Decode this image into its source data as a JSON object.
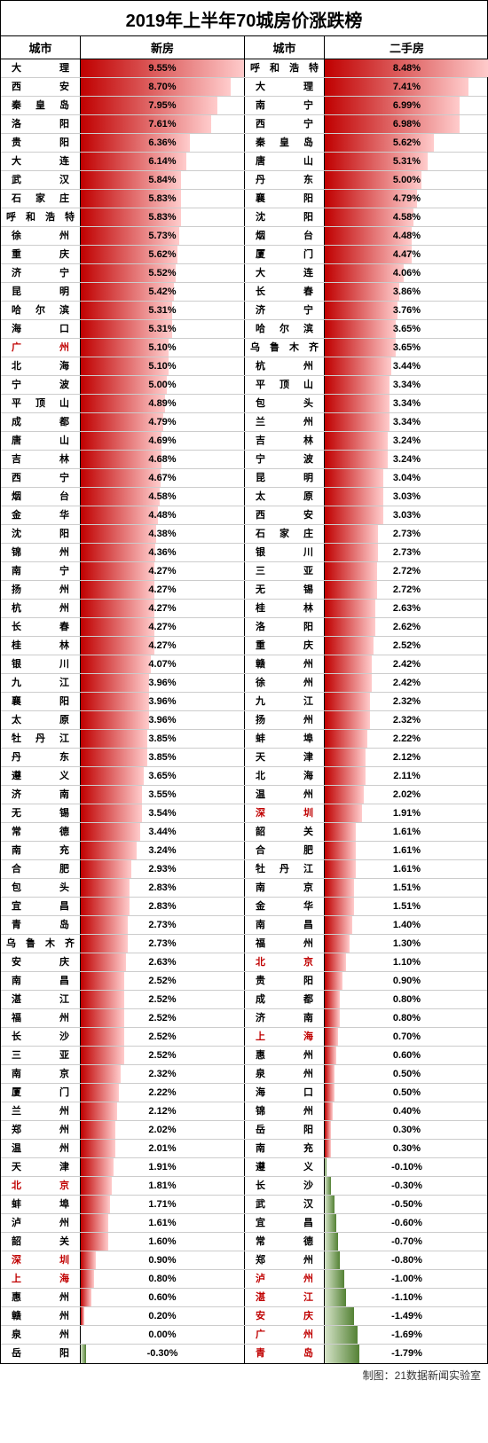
{
  "title": "2019年上半年70城房价涨跌榜",
  "footer": "制图：21数据新闻实验室",
  "headers": {
    "city1": "城市",
    "newHouse": "新房",
    "city2": "城市",
    "secondHand": "二手房"
  },
  "style": {
    "posColorStart": "#c00000",
    "posColorEnd": "#ffcccc",
    "negColorStart": "#548235",
    "negColorEnd": "#d5e3c8",
    "highlightTextColor": "#c00000",
    "borderColor": "#000000",
    "rowBorderColor": "#cccccc",
    "newHouseMax": 9.55,
    "secondHandMax": 8.48,
    "barFullWidthPx": 185,
    "titleFontSize": 20,
    "headerFontSize": 13,
    "cellFontSize": 11,
    "rowHeightPx": 21
  },
  "newHouse": [
    {
      "city": "大　理",
      "value": 9.55,
      "hl": false
    },
    {
      "city": "西　安",
      "value": 8.7,
      "hl": false
    },
    {
      "city": "秦皇岛",
      "value": 7.95,
      "hl": false
    },
    {
      "city": "洛　阳",
      "value": 7.61,
      "hl": false
    },
    {
      "city": "贵　阳",
      "value": 6.36,
      "hl": false
    },
    {
      "city": "大　连",
      "value": 6.14,
      "hl": false
    },
    {
      "city": "武　汉",
      "value": 5.84,
      "hl": false
    },
    {
      "city": "石家庄",
      "value": 5.83,
      "hl": false
    },
    {
      "city": "呼和浩特",
      "value": 5.83,
      "hl": false
    },
    {
      "city": "徐　州",
      "value": 5.73,
      "hl": false
    },
    {
      "city": "重　庆",
      "value": 5.62,
      "hl": false
    },
    {
      "city": "济　宁",
      "value": 5.52,
      "hl": false
    },
    {
      "city": "昆　明",
      "value": 5.42,
      "hl": false
    },
    {
      "city": "哈尔滨",
      "value": 5.31,
      "hl": false
    },
    {
      "city": "海　口",
      "value": 5.31,
      "hl": false
    },
    {
      "city": "广　州",
      "value": 5.1,
      "hl": true
    },
    {
      "city": "北　海",
      "value": 5.1,
      "hl": false
    },
    {
      "city": "宁　波",
      "value": 5.0,
      "hl": false
    },
    {
      "city": "平顶山",
      "value": 4.89,
      "hl": false
    },
    {
      "city": "成　都",
      "value": 4.79,
      "hl": false
    },
    {
      "city": "唐　山",
      "value": 4.69,
      "hl": false
    },
    {
      "city": "吉　林",
      "value": 4.68,
      "hl": false
    },
    {
      "city": "西　宁",
      "value": 4.67,
      "hl": false
    },
    {
      "city": "烟　台",
      "value": 4.58,
      "hl": false
    },
    {
      "city": "金　华",
      "value": 4.48,
      "hl": false
    },
    {
      "city": "沈　阳",
      "value": 4.38,
      "hl": false
    },
    {
      "city": "锦　州",
      "value": 4.36,
      "hl": false
    },
    {
      "city": "南　宁",
      "value": 4.27,
      "hl": false
    },
    {
      "city": "扬　州",
      "value": 4.27,
      "hl": false
    },
    {
      "city": "杭　州",
      "value": 4.27,
      "hl": false
    },
    {
      "city": "长　春",
      "value": 4.27,
      "hl": false
    },
    {
      "city": "桂　林",
      "value": 4.27,
      "hl": false
    },
    {
      "city": "银　川",
      "value": 4.07,
      "hl": false
    },
    {
      "city": "九　江",
      "value": 3.96,
      "hl": false
    },
    {
      "city": "襄　阳",
      "value": 3.96,
      "hl": false
    },
    {
      "city": "太　原",
      "value": 3.96,
      "hl": false
    },
    {
      "city": "牡丹江",
      "value": 3.85,
      "hl": false
    },
    {
      "city": "丹　东",
      "value": 3.85,
      "hl": false
    },
    {
      "city": "遵　义",
      "value": 3.65,
      "hl": false
    },
    {
      "city": "济　南",
      "value": 3.55,
      "hl": false
    },
    {
      "city": "无　锡",
      "value": 3.54,
      "hl": false
    },
    {
      "city": "常　德",
      "value": 3.44,
      "hl": false
    },
    {
      "city": "南　充",
      "value": 3.24,
      "hl": false
    },
    {
      "city": "合　肥",
      "value": 2.93,
      "hl": false
    },
    {
      "city": "包　头",
      "value": 2.83,
      "hl": false
    },
    {
      "city": "宜　昌",
      "value": 2.83,
      "hl": false
    },
    {
      "city": "青　岛",
      "value": 2.73,
      "hl": false
    },
    {
      "city": "乌鲁木齐",
      "value": 2.73,
      "hl": false
    },
    {
      "city": "安　庆",
      "value": 2.63,
      "hl": false
    },
    {
      "city": "南　昌",
      "value": 2.52,
      "hl": false
    },
    {
      "city": "湛　江",
      "value": 2.52,
      "hl": false
    },
    {
      "city": "福　州",
      "value": 2.52,
      "hl": false
    },
    {
      "city": "长　沙",
      "value": 2.52,
      "hl": false
    },
    {
      "city": "三　亚",
      "value": 2.52,
      "hl": false
    },
    {
      "city": "南　京",
      "value": 2.32,
      "hl": false
    },
    {
      "city": "厦　门",
      "value": 2.22,
      "hl": false
    },
    {
      "city": "兰　州",
      "value": 2.12,
      "hl": false
    },
    {
      "city": "郑　州",
      "value": 2.02,
      "hl": false
    },
    {
      "city": "温　州",
      "value": 2.01,
      "hl": false
    },
    {
      "city": "天　津",
      "value": 1.91,
      "hl": false
    },
    {
      "city": "北　京",
      "value": 1.81,
      "hl": true
    },
    {
      "city": "蚌　埠",
      "value": 1.71,
      "hl": false
    },
    {
      "city": "泸　州",
      "value": 1.61,
      "hl": false
    },
    {
      "city": "韶　关",
      "value": 1.6,
      "hl": false
    },
    {
      "city": "深　圳",
      "value": 0.9,
      "hl": true
    },
    {
      "city": "上　海",
      "value": 0.8,
      "hl": true
    },
    {
      "city": "惠　州",
      "value": 0.6,
      "hl": false
    },
    {
      "city": "赣　州",
      "value": 0.2,
      "hl": false
    },
    {
      "city": "泉　州",
      "value": 0.0,
      "hl": false
    },
    {
      "city": "岳　阳",
      "value": -0.3,
      "hl": false
    }
  ],
  "secondHand": [
    {
      "city": "呼和浩特",
      "value": 8.48,
      "hl": false
    },
    {
      "city": "大　理",
      "value": 7.41,
      "hl": false
    },
    {
      "city": "南　宁",
      "value": 6.99,
      "hl": false
    },
    {
      "city": "西　宁",
      "value": 6.98,
      "hl": false
    },
    {
      "city": "秦皇岛",
      "value": 5.62,
      "hl": false
    },
    {
      "city": "唐　山",
      "value": 5.31,
      "hl": false
    },
    {
      "city": "丹　东",
      "value": 5.0,
      "hl": false
    },
    {
      "city": "襄　阳",
      "value": 4.79,
      "hl": false
    },
    {
      "city": "沈　阳",
      "value": 4.58,
      "hl": false
    },
    {
      "city": "烟　台",
      "value": 4.48,
      "hl": false
    },
    {
      "city": "厦　门",
      "value": 4.47,
      "hl": false
    },
    {
      "city": "大　连",
      "value": 4.06,
      "hl": false
    },
    {
      "city": "长　春",
      "value": 3.86,
      "hl": false
    },
    {
      "city": "济　宁",
      "value": 3.76,
      "hl": false
    },
    {
      "city": "哈尔滨",
      "value": 3.65,
      "hl": false
    },
    {
      "city": "乌鲁木齐",
      "value": 3.65,
      "hl": false
    },
    {
      "city": "杭　州",
      "value": 3.44,
      "hl": false
    },
    {
      "city": "平顶山",
      "value": 3.34,
      "hl": false
    },
    {
      "city": "包　头",
      "value": 3.34,
      "hl": false
    },
    {
      "city": "兰　州",
      "value": 3.34,
      "hl": false
    },
    {
      "city": "吉　林",
      "value": 3.24,
      "hl": false
    },
    {
      "city": "宁　波",
      "value": 3.24,
      "hl": false
    },
    {
      "city": "昆　明",
      "value": 3.04,
      "hl": false
    },
    {
      "city": "太　原",
      "value": 3.03,
      "hl": false
    },
    {
      "city": "西　安",
      "value": 3.03,
      "hl": false
    },
    {
      "city": "石家庄",
      "value": 2.73,
      "hl": false
    },
    {
      "city": "银　川",
      "value": 2.73,
      "hl": false
    },
    {
      "city": "三　亚",
      "value": 2.72,
      "hl": false
    },
    {
      "city": "无　锡",
      "value": 2.72,
      "hl": false
    },
    {
      "city": "桂　林",
      "value": 2.63,
      "hl": false
    },
    {
      "city": "洛　阳",
      "value": 2.62,
      "hl": false
    },
    {
      "city": "重　庆",
      "value": 2.52,
      "hl": false
    },
    {
      "city": "赣　州",
      "value": 2.42,
      "hl": false
    },
    {
      "city": "徐　州",
      "value": 2.42,
      "hl": false
    },
    {
      "city": "九　江",
      "value": 2.32,
      "hl": false
    },
    {
      "city": "扬　州",
      "value": 2.32,
      "hl": false
    },
    {
      "city": "蚌　埠",
      "value": 2.22,
      "hl": false
    },
    {
      "city": "天　津",
      "value": 2.12,
      "hl": false
    },
    {
      "city": "北　海",
      "value": 2.11,
      "hl": false
    },
    {
      "city": "温　州",
      "value": 2.02,
      "hl": false
    },
    {
      "city": "深　圳",
      "value": 1.91,
      "hl": true
    },
    {
      "city": "韶　关",
      "value": 1.61,
      "hl": false
    },
    {
      "city": "合　肥",
      "value": 1.61,
      "hl": false
    },
    {
      "city": "牡丹江",
      "value": 1.61,
      "hl": false
    },
    {
      "city": "南　京",
      "value": 1.51,
      "hl": false
    },
    {
      "city": "金　华",
      "value": 1.51,
      "hl": false
    },
    {
      "city": "南　昌",
      "value": 1.4,
      "hl": false
    },
    {
      "city": "福　州",
      "value": 1.3,
      "hl": false
    },
    {
      "city": "北　京",
      "value": 1.1,
      "hl": true
    },
    {
      "city": "贵　阳",
      "value": 0.9,
      "hl": false
    },
    {
      "city": "成　都",
      "value": 0.8,
      "hl": false
    },
    {
      "city": "济　南",
      "value": 0.8,
      "hl": false
    },
    {
      "city": "上　海",
      "value": 0.7,
      "hl": true
    },
    {
      "city": "惠　州",
      "value": 0.6,
      "hl": false
    },
    {
      "city": "泉　州",
      "value": 0.5,
      "hl": false
    },
    {
      "city": "海　口",
      "value": 0.5,
      "hl": false
    },
    {
      "city": "锦　州",
      "value": 0.4,
      "hl": false
    },
    {
      "city": "岳　阳",
      "value": 0.3,
      "hl": false
    },
    {
      "city": "南　充",
      "value": 0.3,
      "hl": false
    },
    {
      "city": "遵　义",
      "value": -0.1,
      "hl": false
    },
    {
      "city": "长　沙",
      "value": -0.3,
      "hl": false
    },
    {
      "city": "武　汉",
      "value": -0.5,
      "hl": false
    },
    {
      "city": "宜　昌",
      "value": -0.6,
      "hl": false
    },
    {
      "city": "常　德",
      "value": -0.7,
      "hl": false
    },
    {
      "city": "郑　州",
      "value": -0.8,
      "hl": false
    },
    {
      "city": "泸　州",
      "value": -1.0,
      "hl": true
    },
    {
      "city": "湛　江",
      "value": -1.1,
      "hl": true
    },
    {
      "city": "安　庆",
      "value": -1.49,
      "hl": true
    },
    {
      "city": "广　州",
      "value": -1.69,
      "hl": true
    },
    {
      "city": "青　岛",
      "value": -1.79,
      "hl": true
    }
  ]
}
